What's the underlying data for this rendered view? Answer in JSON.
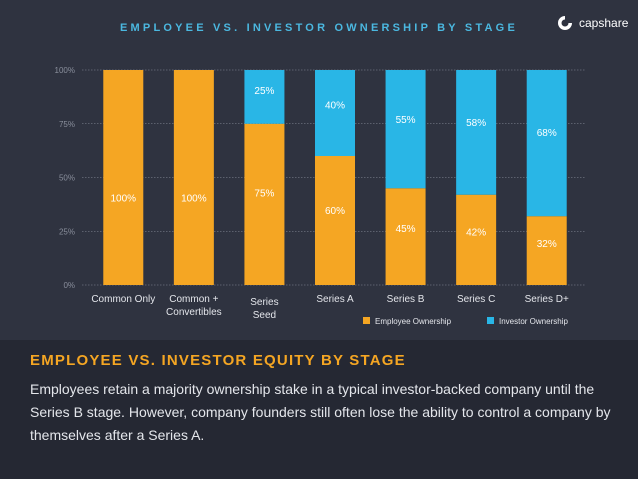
{
  "chart_data": {
    "type": "bar",
    "stacked": true,
    "title": "EMPLOYEE VS. INVESTOR OWNERSHIP BY STAGE",
    "categories": [
      "Common Only",
      "Common + Convertibles",
      "Series Seed",
      "Series A",
      "Series B",
      "Series C",
      "Series D+"
    ],
    "category_lines": [
      [
        "Common Only"
      ],
      [
        "Common +",
        "Convertibles"
      ],
      [
        "Series",
        "Seed"
      ],
      [
        "Series A"
      ],
      [
        "Series B"
      ],
      [
        "Series C"
      ],
      [
        "Series D+"
      ]
    ],
    "series": [
      {
        "name": "Employee Ownership",
        "color": "#f5a623",
        "values": [
          100,
          100,
          75,
          60,
          45,
          42,
          32
        ]
      },
      {
        "name": "Investor Ownership",
        "color": "#29b6e6",
        "values": [
          0,
          0,
          25,
          40,
          55,
          58,
          68
        ]
      }
    ],
    "ylim": [
      0,
      100
    ],
    "yticks": [
      "0%",
      "25%",
      "50%",
      "75%",
      "100%"
    ],
    "ytick_values": [
      0,
      25,
      50,
      75,
      100
    ],
    "grid": true,
    "legend": "bottom-right"
  },
  "brand": {
    "name": "capshare",
    "accent": "#4bb8e0"
  },
  "caption": {
    "heading": "EMPLOYEE VS. INVESTOR EQUITY BY STAGE",
    "body": "Employees retain a majority ownership stake in a typical investor-backed company until the Series B stage. However, company founders still often lose the ability to control a company by themselves after a Series A."
  }
}
